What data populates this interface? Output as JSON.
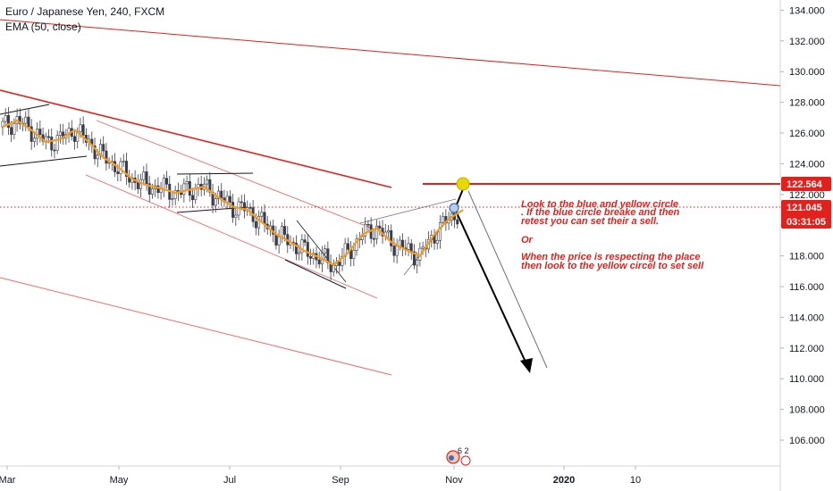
{
  "header": {
    "title": "Euro / Japanese Yen, 240, FXCM",
    "indicator": "EMA (50, close)"
  },
  "annotation": {
    "lines": [
      "Look to the blue and yellow circle",
      ". If the blue circle  breake and then",
      "retest you can set their a sell.",
      "",
      "Or",
      "",
      "When the price is respecting the place",
      "then look to the yellow circel to set sell"
    ]
  },
  "price_tags": {
    "level": "122.564",
    "current": "121.045",
    "countdown": "03:31:05"
  },
  "event_badge": "6 2",
  "colors": {
    "candle_up": "#26a69a",
    "candle_down": "#ef5350",
    "ema": "#f59a23",
    "trendline": "#e2211c",
    "annotation": "#e2211c",
    "yellow_circle": "#e6d800",
    "blue_circle": "#3d6fb6"
  },
  "chart_data": {
    "type": "line",
    "title": "Euro / Japanese Yen, 240, FXCM",
    "xlabel": "",
    "ylabel": "",
    "ylim": [
      104.5,
      135
    ],
    "x_ticks": [
      "Mar",
      "May",
      "Jul",
      "Sep",
      "Nov",
      "2020",
      "10"
    ],
    "y_ticks": [
      "106.000",
      "108.000",
      "110.000",
      "112.000",
      "114.000",
      "116.000",
      "118.000",
      "120.000",
      "122.000",
      "124.000",
      "126.000",
      "128.000",
      "130.000",
      "132.000",
      "134.000"
    ],
    "series": [
      {
        "name": "EMA (50, close)",
        "x": [
          0,
          5,
          10,
          15,
          20,
          25,
          30,
          35,
          40,
          45,
          50,
          55,
          60,
          65,
          70,
          75,
          80,
          85,
          90,
          95,
          100,
          105,
          110,
          115,
          120,
          125,
          130,
          135,
          140,
          145,
          150,
          155,
          160
        ],
        "values": [
          126.4,
          126.8,
          126.2,
          125.4,
          125.6,
          126.2,
          125.4,
          124.4,
          123.8,
          123.0,
          122.6,
          122.4,
          122.1,
          122.3,
          122.5,
          121.8,
          121.2,
          121.0,
          120.2,
          119.4,
          118.9,
          118.3,
          117.9,
          117.4,
          118.2,
          119.4,
          119.8,
          118.9,
          118.4,
          118.0,
          119.4,
          120.4,
          121.0
        ]
      }
    ],
    "levels": [
      {
        "label": "122.564",
        "value": 122.564
      },
      {
        "label": "121.045",
        "value": 121.045
      }
    ]
  }
}
